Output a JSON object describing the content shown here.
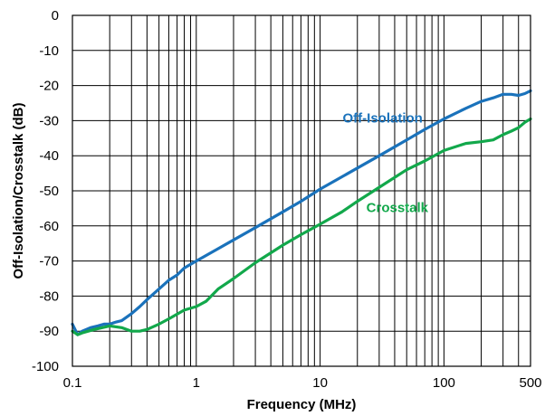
{
  "chart_data": {
    "type": "line",
    "title": "",
    "xlabel": "Frequency (MHz)",
    "ylabel": "Off-Isolation/Crosstalk (dB)",
    "xscale": "log",
    "xlim": [
      0.1,
      500
    ],
    "ylim": [
      -100,
      0
    ],
    "grid": true,
    "legend": "inline labels",
    "xtick_labels": [
      "0.1",
      "1",
      "10",
      "100",
      "500"
    ],
    "xtick_values": [
      0.1,
      1,
      10,
      100,
      500
    ],
    "ytick_labels": [
      "0",
      "-10",
      "-20",
      "-30",
      "-40",
      "-50",
      "-60",
      "-70",
      "-80",
      "-90",
      "-100"
    ],
    "ytick_values": [
      0,
      -10,
      -20,
      -30,
      -40,
      -50,
      -60,
      -70,
      -80,
      -90,
      -100
    ],
    "series": [
      {
        "name": "Off-Isolation",
        "color": "#1a72bb",
        "x": [
          0.1,
          0.11,
          0.12,
          0.14,
          0.16,
          0.18,
          0.2,
          0.22,
          0.25,
          0.3,
          0.35,
          0.4,
          0.5,
          0.6,
          0.7,
          0.8,
          1,
          1.5,
          2,
          3,
          5,
          7,
          10,
          15,
          20,
          30,
          50,
          70,
          100,
          150,
          200,
          250,
          300,
          350,
          400,
          450,
          500
        ],
        "y": [
          -88,
          -91,
          -90,
          -89,
          -88.5,
          -88,
          -88,
          -87.5,
          -87,
          -85,
          -83,
          -81,
          -78,
          -75.5,
          -74,
          -72,
          -70,
          -66.5,
          -64,
          -60.5,
          -56,
          -53,
          -49.5,
          -46,
          -43.5,
          -40,
          -35.5,
          -32.5,
          -29.5,
          -26.5,
          -24.5,
          -23.5,
          -22.5,
          -22.5,
          -22.8,
          -22.3,
          -21.5
        ]
      },
      {
        "name": "Crosstalk",
        "color": "#12a84b",
        "x": [
          0.1,
          0.11,
          0.12,
          0.15,
          0.2,
          0.25,
          0.3,
          0.35,
          0.4,
          0.5,
          0.6,
          0.8,
          1,
          1.2,
          1.5,
          2,
          3,
          5,
          7,
          10,
          15,
          20,
          30,
          50,
          70,
          100,
          150,
          200,
          250,
          300,
          350,
          400,
          450,
          500
        ],
        "y": [
          -90,
          -91,
          -90.5,
          -89.5,
          -88.5,
          -89,
          -90,
          -90,
          -89.5,
          -88,
          -86.5,
          -84,
          -83,
          -81.5,
          -78,
          -75,
          -70.5,
          -65.5,
          -62.5,
          -59.5,
          -56,
          -53,
          -49,
          -44,
          -41.5,
          -38.5,
          -36.5,
          -36,
          -35.5,
          -34,
          -33,
          -32,
          -30.5,
          -29.5
        ]
      }
    ],
    "annotations": [
      {
        "text": "Off-Isolation",
        "series": "Off-Isolation",
        "x": 32,
        "y": -30.5
      },
      {
        "text": "Crosstalk",
        "series": "Crosstalk",
        "x": 42,
        "y": -56
      }
    ]
  }
}
